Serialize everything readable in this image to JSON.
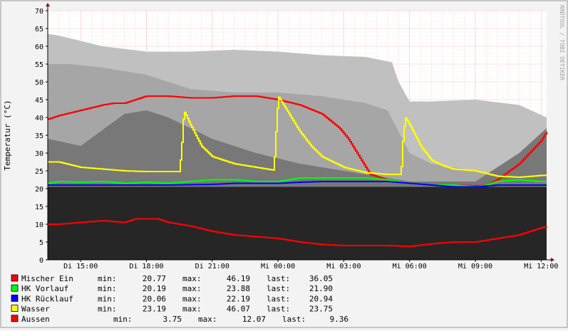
{
  "chart_data": {
    "type": "line",
    "ylabel": "Temperatur (°C)",
    "ylim": [
      0,
      70
    ],
    "y_ticks": [
      0,
      5,
      10,
      15,
      20,
      25,
      30,
      35,
      40,
      45,
      50,
      55,
      60,
      65,
      70
    ],
    "x_hours": [
      13.5,
      36.25
    ],
    "x_ticks": [
      {
        "h": 15,
        "label": "Di 15:00"
      },
      {
        "h": 18,
        "label": "Di 18:00"
      },
      {
        "h": 21,
        "label": "Di 21:00"
      },
      {
        "h": 24,
        "label": "Mi 00:00"
      },
      {
        "h": 27,
        "label": "Mi 03:00"
      },
      {
        "h": 30,
        "label": "Mi 06:00"
      },
      {
        "h": 33,
        "label": "Mi 09:00"
      },
      {
        "h": 36,
        "label": "Mi 12:00"
      }
    ],
    "watermark": "RRDTOOL / TOBI OETIKER",
    "colors": {
      "background": "#f3f3f3",
      "plot": "#ffffff",
      "grid": "#ff9090",
      "mischer": "#ff0000",
      "vorlauf": "#00ff00",
      "ruecklauf": "#0000ff",
      "wasser": "#ffff00",
      "aussen": "#ff0000",
      "band_light": "#bfbfbf",
      "band_mid": "#a0a0a0",
      "band_dark": "#6e6e6e",
      "floor": "#262626"
    },
    "bands": [
      {
        "name": "band-light",
        "color": "#c0c0c0",
        "x": [
          13.5,
          14,
          15,
          16,
          18,
          20,
          22,
          24,
          26,
          28,
          29.2,
          29.5,
          30,
          31,
          33,
          35,
          36.25
        ],
        "y": [
          63.5,
          63,
          61.5,
          60,
          58.5,
          58.5,
          59,
          58.5,
          57.5,
          57,
          55.5,
          50,
          44.5,
          44.5,
          45,
          43.5,
          40
        ]
      },
      {
        "name": "band-mid",
        "color": "#a6a6a6",
        "x": [
          13.5,
          14.5,
          16,
          18,
          20,
          22,
          24,
          26,
          28,
          29,
          30,
          31,
          32,
          33,
          34,
          36.25
        ],
        "y": [
          55,
          55,
          54,
          52,
          48,
          47,
          47,
          46,
          44,
          42,
          30,
          27,
          26,
          25,
          24,
          24
        ]
      },
      {
        "name": "band-dark",
        "color": "#787878",
        "x": [
          13.5,
          15,
          17,
          18,
          19,
          21,
          23,
          25,
          26,
          27,
          28,
          29,
          30,
          33,
          34,
          35,
          36.25
        ],
        "y": [
          34,
          32,
          41,
          42,
          40,
          34,
          30,
          27,
          26,
          25,
          24,
          23,
          22,
          22,
          26,
          30,
          37
        ]
      }
    ],
    "series": [
      {
        "name": "Mischer Ein",
        "legend": "Mischer Ein",
        "color": "#ff0000",
        "x": [
          13.5,
          14,
          15,
          16,
          16.5,
          17,
          17.5,
          18,
          19,
          20,
          21,
          22,
          23,
          24,
          25,
          26,
          26.8,
          27.2,
          27.7,
          28.2,
          29,
          30,
          31,
          32,
          33,
          33.5,
          34,
          35,
          36,
          36.25
        ],
        "y": [
          39.5,
          40.5,
          42,
          43.5,
          44,
          44,
          45,
          46,
          46,
          45.5,
          45.5,
          46,
          46,
          45,
          43.5,
          41,
          37,
          34,
          29,
          24,
          22.5,
          21.5,
          21,
          21,
          20.8,
          21,
          22.5,
          27,
          33.5,
          36
        ],
        "stats": {
          "min": "20.77",
          "max": "46.19",
          "last": "36.05"
        }
      },
      {
        "name": "HK Vorlauf",
        "legend": "HK Vorlauf",
        "color": "#00ff00",
        "x": [
          13.5,
          14,
          15,
          16,
          17,
          18,
          19,
          20,
          21,
          22,
          23,
          24,
          25,
          26,
          27,
          28,
          29,
          30,
          31,
          32,
          33,
          33.5,
          34,
          35,
          36,
          36.25
        ],
        "y": [
          21.5,
          22,
          21.8,
          22,
          21.5,
          21.8,
          21.5,
          22,
          22.5,
          22.5,
          22,
          22,
          23,
          23,
          23,
          23,
          22.5,
          21.5,
          21,
          21,
          20.5,
          21,
          22,
          22.5,
          22,
          22
        ],
        "stats": {
          "min": "20.19",
          "max": "23.88",
          "last": "21.90"
        }
      },
      {
        "name": "HK Rücklauf",
        "legend": "HK Rücklauf",
        "color": "#0000ff",
        "x": [
          13.5,
          15,
          17,
          19,
          21,
          22,
          23,
          24,
          25,
          26,
          27,
          28,
          29,
          30,
          31,
          32,
          33,
          34,
          35,
          36.25
        ],
        "y": [
          21,
          21,
          21,
          21,
          21.2,
          21.5,
          21.5,
          21.5,
          21.8,
          22,
          22,
          22,
          22,
          21.5,
          21,
          20.5,
          20.5,
          21,
          21,
          21
        ],
        "stats": {
          "min": "20.06",
          "max": "22.19",
          "last": "20.94"
        }
      },
      {
        "name": "Wasser",
        "legend": "Wasser",
        "color": "#ffff00",
        "x": [
          13.5,
          14,
          15,
          16,
          17,
          18,
          19.5,
          19.6,
          19.7,
          20,
          20.5,
          21,
          22,
          23,
          23.8,
          23.9,
          24,
          24.5,
          25,
          25.5,
          26,
          27,
          28,
          29,
          29.6,
          29.7,
          29.8,
          30,
          30.5,
          31,
          31.5,
          32,
          33,
          34,
          35,
          36,
          36.25
        ],
        "y": [
          27.5,
          27.5,
          26,
          25.5,
          25,
          24.8,
          24.8,
          32,
          42,
          38,
          32,
          29,
          27,
          26,
          25.2,
          36,
          46,
          41,
          36,
          32,
          29,
          26,
          24.5,
          24,
          24,
          35,
          40,
          38,
          32,
          28,
          26.5,
          25.5,
          25,
          23.5,
          23.2,
          23.7,
          23.75
        ],
        "stats": {
          "min": "23.19",
          "max": "46.07",
          "last": "23.75"
        }
      },
      {
        "name": "Aussen",
        "legend": "Aussen",
        "color": "#ff0000",
        "x": [
          13.5,
          14,
          15,
          16,
          17,
          17.5,
          18,
          18.5,
          19,
          20,
          21,
          22,
          23,
          24,
          25,
          26,
          27,
          28,
          29,
          30,
          31,
          32,
          33,
          34,
          35,
          36,
          36.25
        ],
        "y": [
          10,
          10,
          10.5,
          11,
          10.5,
          11.5,
          11.5,
          11.5,
          10.5,
          9.5,
          8,
          7,
          6.5,
          6,
          5,
          4.3,
          4,
          4,
          4,
          3.75,
          4.5,
          5,
          5,
          6,
          7,
          9,
          9.36
        ],
        "stats": {
          "min": "3.75",
          "max": "12.07",
          "last": "9.36"
        }
      }
    ]
  },
  "legend_labels": {
    "min": "min:",
    "max": "max:",
    "last": "last:"
  }
}
